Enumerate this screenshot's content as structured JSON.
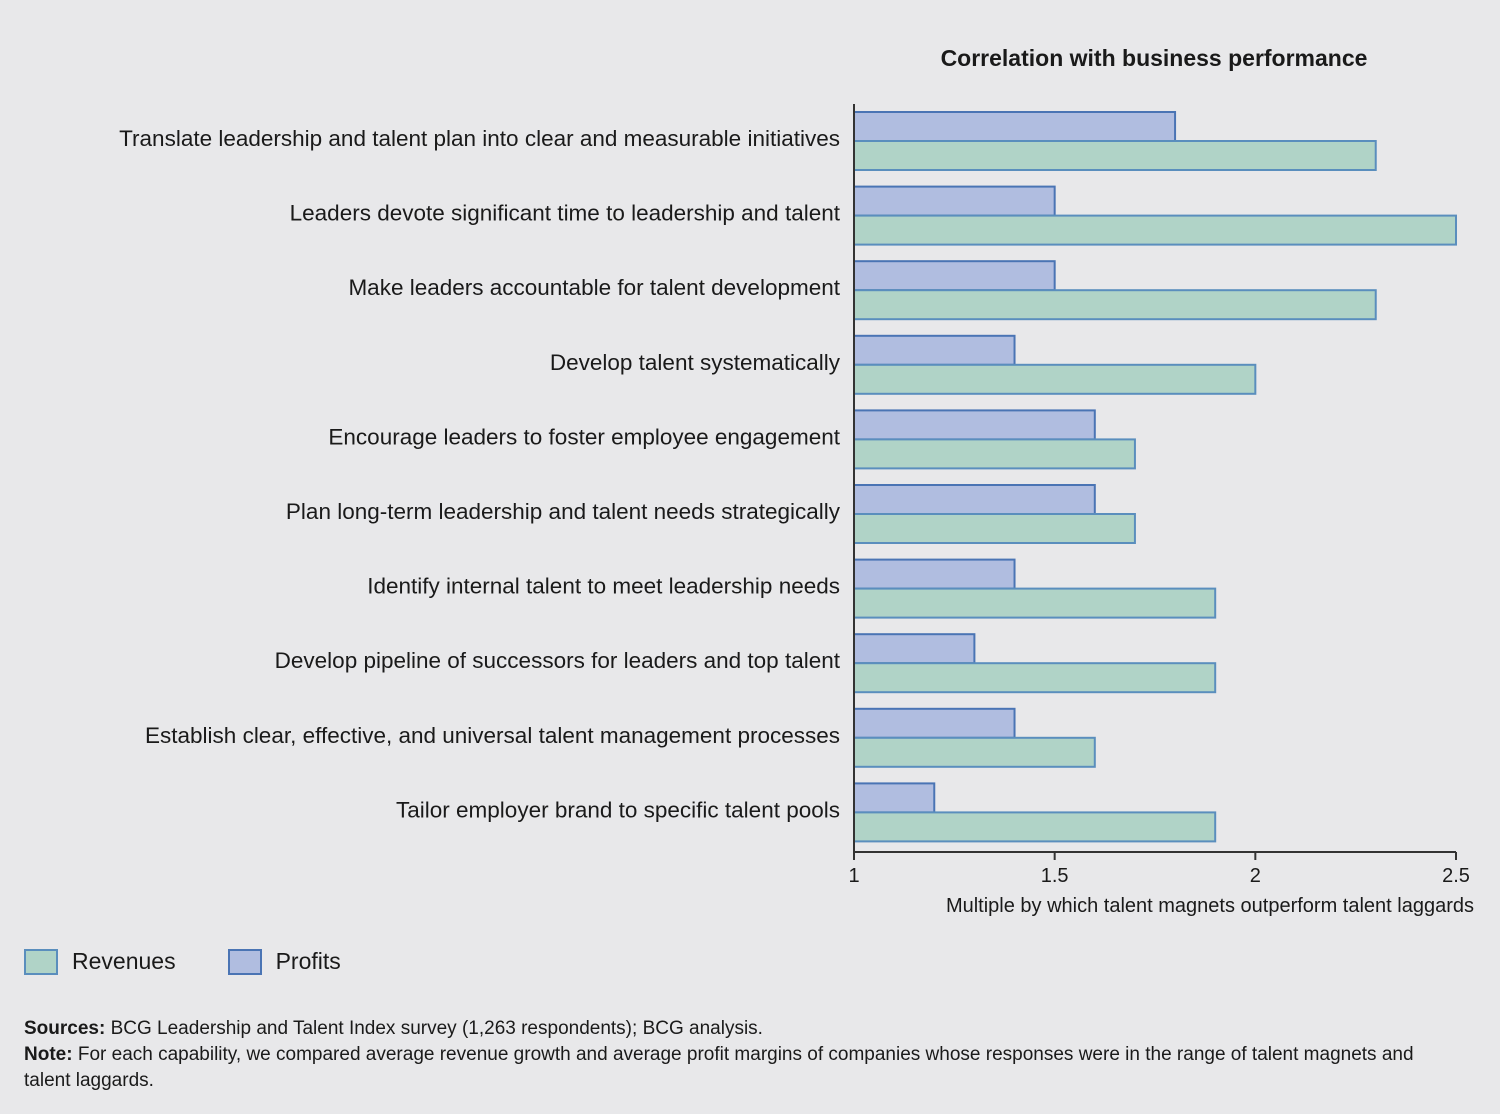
{
  "chart_data": {
    "type": "bar",
    "orientation": "horizontal",
    "title": "Correlation with business performance",
    "xlabel": "Multiple by which talent magnets outperform talent laggards",
    "xlim": [
      1,
      2.5
    ],
    "xticks": [
      "1",
      "1.5",
      "2",
      "2.5"
    ],
    "xtick_values": [
      1,
      1.5,
      2,
      2.5
    ],
    "categories": [
      "Translate leadership and talent plan into clear and measurable initiatives",
      "Leaders devote significant time to leadership and talent",
      "Make leaders accountable for talent development",
      "Develop talent systematically",
      "Encourage leaders to foster employee engagement",
      "Plan long-term leadership and talent needs strategically",
      "Identify internal talent to meet leadership needs",
      "Develop pipeline of successors for leaders and top talent",
      "Establish clear, effective, and universal talent management processes",
      "Tailor employer brand to specific talent pools"
    ],
    "series": [
      {
        "name": "Profits",
        "color": "#b0bde0",
        "stroke": "#4a74b4",
        "values": [
          1.8,
          1.5,
          1.5,
          1.4,
          1.6,
          1.6,
          1.4,
          1.3,
          1.4,
          1.2
        ]
      },
      {
        "name": "Revenues",
        "color": "#b0d3c7",
        "stroke": "#5a8ebd",
        "values": [
          2.3,
          2.5,
          2.3,
          2.0,
          1.7,
          1.7,
          1.9,
          1.9,
          1.6,
          1.9
        ]
      }
    ],
    "grid": false,
    "legend_position": "bottom-left"
  },
  "legend": {
    "revenues_label": "Revenues",
    "profits_label": "Profits"
  },
  "footer": {
    "sources_label": "Sources:",
    "sources_text": "BCG Leadership and Talent Index survey (1,263 respondents); BCG analysis.",
    "note_label": "Note:",
    "note_text": "For each capability, we compared average revenue growth and average profit margins of companies whose responses were in the range of talent magnets and talent laggards."
  }
}
